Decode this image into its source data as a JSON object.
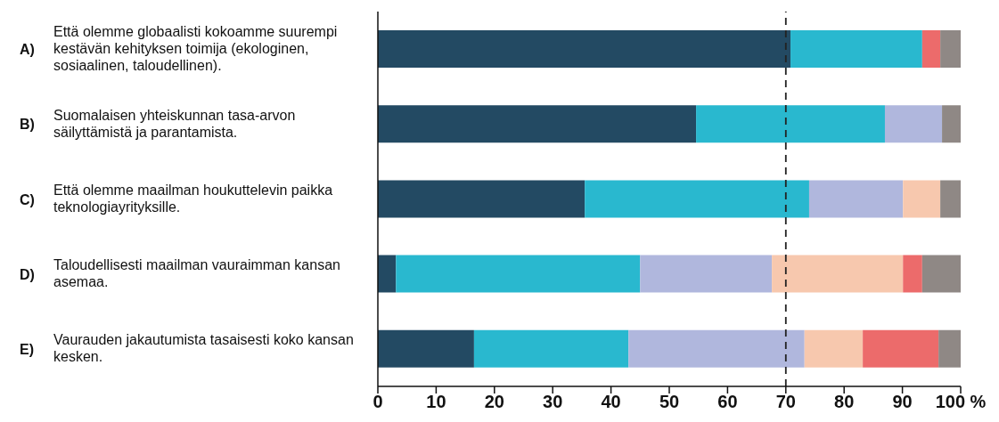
{
  "chart_data": {
    "type": "bar",
    "orientation": "horizontal",
    "stacked": true,
    "categories": [
      "Että olemme globaalisti kokoamme suurempi kestävän kehityksen toimija (ekologinen, sosiaalinen, taloudellinen).",
      "Suomalaisen yhteiskunnan tasa-arvon säilyttämistä ja parantamista.",
      "Että olemme maailman houkuttelevin paikka teknologiayrityksille.",
      "Taloudellisesti maailman vauraimman kansan asemaa.",
      "Vaurauden jakautumista tasaisesti koko kansan kesken."
    ],
    "annotations": [
      "A)",
      "B)",
      "C)",
      "D)",
      "E)"
    ],
    "series": [
      {
        "color": "#234a63",
        "values": [
          70.8,
          54.6,
          35.5,
          3.1,
          16.5
        ]
      },
      {
        "color": "#29b8cf",
        "values": [
          22.6,
          32.4,
          38.5,
          41.9,
          26.5
        ]
      },
      {
        "color": "#b0b7dd",
        "values": [
          null,
          9.8,
          16.1,
          22.6,
          30.2
        ]
      },
      {
        "color": "#f7c8ae",
        "values": [
          null,
          null,
          6.4,
          22.5,
          10.0
        ]
      },
      {
        "color": "#ec6b6b",
        "values": [
          3.1,
          null,
          null,
          3.3,
          13.0
        ]
      },
      {
        "color": "#8f8885",
        "values": [
          3.5,
          3.2,
          3.5,
          6.6,
          3.8
        ]
      }
    ],
    "xlim": [
      0,
      100
    ],
    "xticks": [
      0,
      10,
      20,
      30,
      40,
      50,
      60,
      70,
      80,
      90,
      {
        "value": 100,
        "label": "100 %"
      }
    ],
    "ref_lines": [
      {
        "axis": "x",
        "value": 70,
        "color": "#222222",
        "line_style": "dashed"
      }
    ],
    "grid": false,
    "legend": false
  }
}
